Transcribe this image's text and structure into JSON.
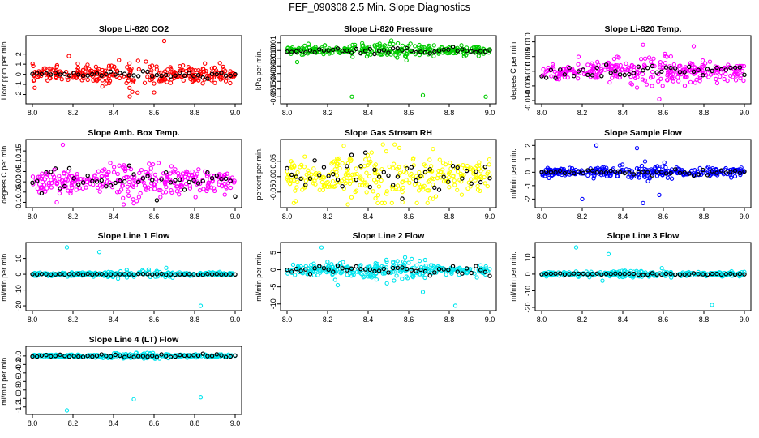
{
  "title": "FEF_090308  2.5 Min. Slope Diagnostics",
  "chart_data": [
    {
      "type": "scatter",
      "title": "Slope Li-820 CO2",
      "ylabel": "Licor ppm per min.",
      "color": "#ff0000",
      "xlim": [
        8.0,
        9.0
      ],
      "ylim": [
        -2.6,
        3.5
      ],
      "xticks": [
        "8.0",
        "8.2",
        "8.4",
        "8.6",
        "8.8",
        "9.0"
      ],
      "yticks": [
        -2,
        -1,
        0,
        1,
        2
      ],
      "ytick_labels": [
        "-2",
        "-1",
        "0",
        "1",
        "2"
      ],
      "spread": 0.55,
      "outliers": [
        [
          8.65,
          3.3
        ],
        [
          8.48,
          -2.2
        ],
        [
          8.18,
          1.8
        ],
        [
          8.6,
          -1.8
        ]
      ],
      "hourly_spread": 0.15
    },
    {
      "type": "scatter",
      "title": "Slope Li-820 Pressure",
      "ylabel": "kPa per min.",
      "color": "#00cc00",
      "xlim": [
        8.0,
        9.0
      ],
      "ylim": [
        -0.065,
        0.015
      ],
      "xticks": [
        "8.0",
        "8.2",
        "8.4",
        "8.6",
        "8.8",
        "9.0"
      ],
      "yticks": [
        0.01,
        0,
        -0.01,
        -0.02,
        -0.03,
        -0.04,
        -0.05,
        -0.06
      ],
      "ytick_labels": [
        "0.01",
        "0.00",
        "-0.01",
        "-0.02",
        "-0.03",
        "-0.04",
        "-0.05",
        "-0.06"
      ],
      "spread": 0.004,
      "outliers": [
        [
          8.32,
          -0.06
        ],
        [
          8.67,
          -0.058
        ],
        [
          8.98,
          -0.06
        ],
        [
          8.05,
          -0.015
        ]
      ],
      "hourly_spread": 0.002
    },
    {
      "type": "scatter",
      "title": "Slope Li-820 Temp.",
      "ylabel": "degees C per min.",
      "color": "#ff00ff",
      "xlim": [
        8.0,
        9.0
      ],
      "ylim": [
        -0.01,
        0.011
      ],
      "xticks": [
        "8.0",
        "8.2",
        "8.4",
        "8.6",
        "8.8",
        "9.0"
      ],
      "yticks": [
        -0.01,
        -0.005,
        0,
        0.005,
        0.01
      ],
      "ytick_labels": [
        "-0.010",
        "-0.005",
        "0.000",
        "0.005",
        "0.010"
      ],
      "spread": 0.0022,
      "outliers": [
        [
          8.58,
          -0.0095
        ],
        [
          8.5,
          0.009
        ],
        [
          8.75,
          0.0085
        ]
      ],
      "hourly_spread": 0.0012
    },
    {
      "type": "scatter",
      "title": "Slope Amb. Box Temp.",
      "ylabel": "degees C per min.",
      "color": "#ff00ff",
      "xlim": [
        8.0,
        9.0
      ],
      "ylim": [
        -0.11,
        0.19
      ],
      "xticks": [
        "8.0",
        "8.2",
        "8.4",
        "8.6",
        "8.8",
        "9.0"
      ],
      "yticks": [
        -0.1,
        -0.05,
        0,
        0.05,
        0.1,
        0.15
      ],
      "ytick_labels": [
        "-0.10",
        "-0.05",
        "0.00",
        "0.05",
        "0.10",
        "0.15"
      ],
      "spread": 0.04,
      "outliers": [
        [
          8.15,
          0.18
        ],
        [
          8.12,
          -0.1
        ],
        [
          8.45,
          -0.11
        ]
      ],
      "hourly_spread": 0.03
    },
    {
      "type": "scatter",
      "title": "Slope Gas Stream RH",
      "ylabel": "percent per min.",
      "color": "#ffff00",
      "xlim": [
        8.0,
        9.0
      ],
      "ylim": [
        -0.09,
        0.11
      ],
      "xticks": [
        "8.0",
        "8.2",
        "8.4",
        "8.6",
        "8.8",
        "9.0"
      ],
      "yticks": [
        -0.05,
        0,
        0.05
      ],
      "ytick_labels": [
        "-0.05",
        "0.00",
        "0.05"
      ],
      "spread": 0.04,
      "outliers": [
        [
          8.28,
          0.1
        ],
        [
          8.72,
          0.09
        ],
        [
          8.3,
          -0.09
        ]
      ],
      "hourly_spread": 0.03
    },
    {
      "type": "scatter",
      "title": "Slope Sample Flow",
      "ylabel": "ml/min per min.",
      "color": "#0000ff",
      "xlim": [
        8.0,
        9.0
      ],
      "ylim": [
        -2.4,
        2.2
      ],
      "xticks": [
        "8.0",
        "8.2",
        "8.4",
        "8.6",
        "8.8",
        "9.0"
      ],
      "yticks": [
        -2,
        -1,
        0,
        1,
        2
      ],
      "ytick_labels": [
        "-2",
        "-1",
        "0",
        "1",
        "2"
      ],
      "spread": 0.25,
      "outliers": [
        [
          8.27,
          2.0
        ],
        [
          8.47,
          1.8
        ],
        [
          8.5,
          -2.3
        ],
        [
          8.2,
          -2.0
        ],
        [
          8.58,
          -1.7
        ]
      ],
      "hourly_spread": 0.1
    },
    {
      "type": "scatter",
      "title": "Slope Line 1 Flow",
      "ylabel": "ml/min per min.",
      "color": "#00e5ee",
      "xlim": [
        8.0,
        9.0
      ],
      "ylim": [
        -21,
        18
      ],
      "xticks": [
        "8.0",
        "8.2",
        "8.4",
        "8.6",
        "8.8",
        "9.0"
      ],
      "yticks": [
        -20,
        -10,
        0,
        10
      ],
      "ytick_labels": [
        "-20",
        "-10",
        "0",
        "10"
      ],
      "spread": 0.8,
      "outliers": [
        [
          8.17,
          17
        ],
        [
          8.33,
          14
        ],
        [
          8.83,
          -20
        ],
        [
          8.66,
          4
        ]
      ],
      "hourly_spread": 0.2
    },
    {
      "type": "scatter",
      "title": "Slope Line 2 Flow",
      "ylabel": "ml/min per min.",
      "color": "#00e5ee",
      "xlim": [
        8.0,
        9.0
      ],
      "ylim": [
        -11,
        7
      ],
      "xticks": [
        "8.0",
        "8.2",
        "8.4",
        "8.6",
        "8.8",
        "9.0"
      ],
      "yticks": [
        -10,
        -5,
        0,
        5
      ],
      "ytick_labels": [
        "-10",
        "-5",
        "0",
        "5"
      ],
      "spread": 1.2,
      "outliers": [
        [
          8.17,
          6.5
        ],
        [
          8.25,
          -4.5
        ],
        [
          8.67,
          -6.5
        ],
        [
          8.83,
          -10.5
        ]
      ],
      "hourly_spread": 0.6
    },
    {
      "type": "scatter",
      "title": "Slope Line 3 Flow",
      "ylabel": "ml/min per min.",
      "color": "#00e5ee",
      "xlim": [
        8.0,
        9.0
      ],
      "ylim": [
        -20,
        17
      ],
      "xticks": [
        "8.0",
        "8.2",
        "8.4",
        "8.6",
        "8.8",
        "9.0"
      ],
      "yticks": [
        -20,
        -10,
        0,
        10
      ],
      "ytick_labels": [
        "-20",
        "-10",
        "0",
        "10"
      ],
      "spread": 0.9,
      "outliers": [
        [
          8.17,
          16
        ],
        [
          8.33,
          12
        ],
        [
          8.84,
          -18.5
        ],
        [
          8.3,
          -4
        ]
      ],
      "hourly_spread": 0.3
    },
    {
      "type": "scatter",
      "title": "Slope Line 4 (LT) Flow",
      "ylabel": "ml/min per min.",
      "color": "#00e5ee",
      "xlim": [
        8.0,
        9.0
      ],
      "ylim": [
        -1.3,
        0.15
      ],
      "xticks": [
        "8.0",
        "8.2",
        "8.4",
        "8.6",
        "8.8",
        "9.0"
      ],
      "yticks": [
        0,
        -0.2,
        -0.4,
        -0.6,
        -0.8,
        -1.0,
        -1.2
      ],
      "ytick_labels": [
        "0.0",
        "-0.2",
        "-0.4",
        "-0.6",
        "-0.8",
        "-1.0",
        "-1.2"
      ],
      "spread": 0.025,
      "outliers": [
        [
          8.17,
          -1.28
        ],
        [
          8.5,
          -1.02
        ],
        [
          8.83,
          -0.97
        ]
      ],
      "hourly_spread": 0.02
    }
  ]
}
